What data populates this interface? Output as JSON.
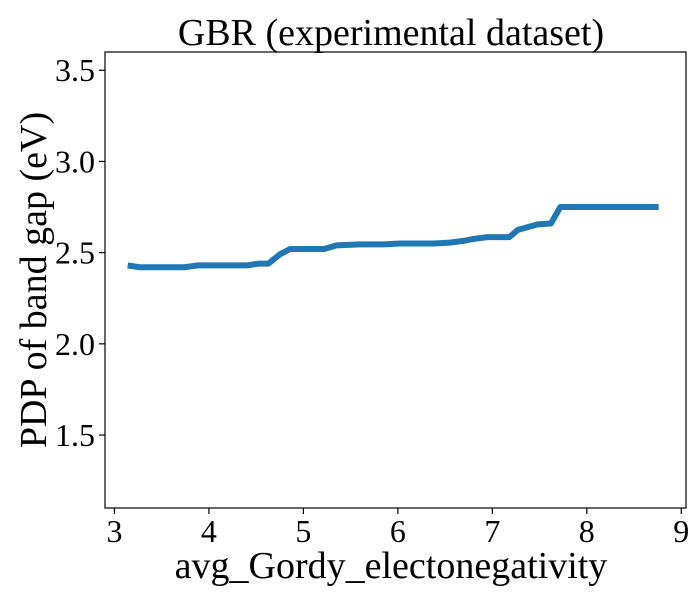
{
  "chart_data": {
    "type": "line",
    "title": "GBR (experimental dataset)",
    "xlabel": "avg_Gordy_electonegativity",
    "ylabel": "PDP of band gap (eV)",
    "xlim": [
      2.9,
      9.05
    ],
    "ylim": [
      1.1,
      3.6
    ],
    "xticks": [
      3,
      4,
      5,
      6,
      7,
      8,
      9
    ],
    "yticks": [
      1.5,
      2.0,
      2.5,
      3.0,
      3.5
    ],
    "xtick_labels": [
      "3",
      "4",
      "5",
      "6",
      "7",
      "8",
      "9"
    ],
    "ytick_labels": [
      "1.5",
      "2.0",
      "2.5",
      "3.0",
      "3.5"
    ],
    "grid": false,
    "series": [
      {
        "color": "#1f77b4",
        "x": [
          3.14,
          3.27,
          3.4,
          3.55,
          3.74,
          3.88,
          4.05,
          4.22,
          4.4,
          4.53,
          4.63,
          4.75,
          4.86,
          5.05,
          5.22,
          5.35,
          5.6,
          5.85,
          6.02,
          6.2,
          6.38,
          6.55,
          6.7,
          6.8,
          6.95,
          7.18,
          7.27,
          7.48,
          7.62,
          7.72,
          8.0,
          8.4,
          8.76
        ],
        "y": [
          2.43,
          2.42,
          2.42,
          2.42,
          2.42,
          2.43,
          2.43,
          2.43,
          2.43,
          2.44,
          2.44,
          2.49,
          2.52,
          2.52,
          2.52,
          2.54,
          2.545,
          2.545,
          2.55,
          2.55,
          2.55,
          2.555,
          2.565,
          2.575,
          2.585,
          2.585,
          2.625,
          2.655,
          2.66,
          2.75,
          2.75,
          2.75,
          2.75
        ]
      }
    ]
  }
}
